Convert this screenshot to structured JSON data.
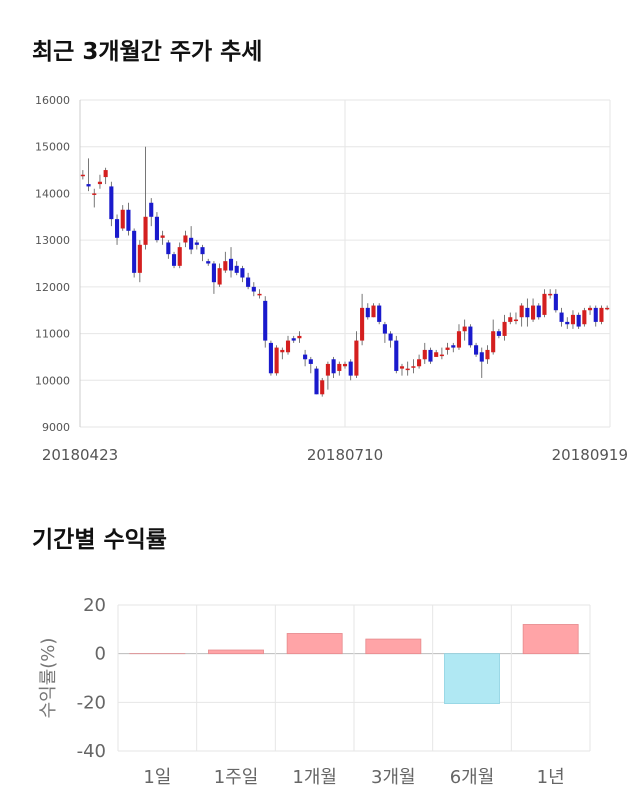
{
  "titles": {
    "price": "최근 3개월간 주가 추세",
    "returns": "기간별 수익률"
  },
  "colors": {
    "up": "#d41f1f",
    "down": "#1a1acc",
    "pos_bar": "#ffa4a7",
    "neg_bar": "#b0e8f3",
    "grid": "#e6e6e6"
  },
  "chart_data": [
    {
      "type": "candlestick",
      "title": "최근 3개월간 주가 추세",
      "ylim": [
        9000,
        16000
      ],
      "yticks": [
        9000,
        10000,
        11000,
        12000,
        13000,
        14000,
        15000,
        16000
      ],
      "x_labels": [
        "20180423",
        "20180710",
        "20180919"
      ],
      "grid": true,
      "candles": [
        [
          14400,
          14400,
          14500,
          14300
        ],
        [
          14200,
          14150,
          14750,
          14050
        ],
        [
          14000,
          14000,
          14100,
          13700
        ],
        [
          14200,
          14250,
          14400,
          14100
        ],
        [
          14350,
          14500,
          14550,
          14200
        ],
        [
          14150,
          13450,
          14250,
          13300
        ],
        [
          13450,
          13050,
          13550,
          12900
        ],
        [
          13250,
          13650,
          13750,
          13200
        ],
        [
          13650,
          13200,
          13800,
          13100
        ],
        [
          13200,
          12300,
          13250,
          12200
        ],
        [
          12300,
          12900,
          13000,
          12100
        ],
        [
          12900,
          13500,
          15000,
          12800
        ],
        [
          13800,
          13500,
          13900,
          13300
        ],
        [
          13500,
          13000,
          13600,
          12950
        ],
        [
          13050,
          13100,
          13200,
          12900
        ],
        [
          12950,
          12700,
          13000,
          12600
        ],
        [
          12700,
          12450,
          12750,
          12400
        ],
        [
          12450,
          12850,
          12950,
          12400
        ],
        [
          12950,
          13100,
          13200,
          12850
        ],
        [
          13050,
          12800,
          13300,
          12700
        ],
        [
          12950,
          12900,
          13000,
          12800
        ],
        [
          12850,
          12700,
          12900,
          12550
        ],
        [
          12550,
          12500,
          12600,
          12450
        ],
        [
          12500,
          12100,
          12550,
          11850
        ],
        [
          12050,
          12400,
          12500,
          12000
        ],
        [
          12350,
          12550,
          12750,
          12300
        ],
        [
          12600,
          12350,
          12850,
          12200
        ],
        [
          12450,
          12300,
          12550,
          12250
        ],
        [
          12400,
          12200,
          12450,
          12100
        ],
        [
          12200,
          12000,
          12300,
          11950
        ],
        [
          12000,
          11900,
          12100,
          11800
        ],
        [
          11850,
          11850,
          11950,
          11750
        ],
        [
          11700,
          10850,
          11800,
          10700
        ],
        [
          10800,
          10150,
          10850,
          10100
        ],
        [
          10150,
          10700,
          10750,
          10100
        ],
        [
          10600,
          10650,
          10700,
          10450
        ],
        [
          10600,
          10850,
          10950,
          10550
        ],
        [
          10900,
          10850,
          10950,
          10800
        ],
        [
          10900,
          10950,
          11050,
          10800
        ],
        [
          10550,
          10450,
          10650,
          10300
        ],
        [
          10450,
          10350,
          10500,
          10150
        ],
        [
          10250,
          9700,
          10300,
          9700
        ],
        [
          9700,
          10000,
          10050,
          9650
        ],
        [
          10100,
          10350,
          10400,
          9800
        ],
        [
          10450,
          10150,
          10500,
          10050
        ],
        [
          10200,
          10350,
          10400,
          10100
        ],
        [
          10300,
          10350,
          10400,
          10250
        ],
        [
          10400,
          10100,
          10450,
          10000
        ],
        [
          10100,
          10850,
          11050,
          10050
        ],
        [
          10850,
          11550,
          11850,
          10750
        ],
        [
          11550,
          11350,
          11650,
          11300
        ],
        [
          11350,
          11600,
          11650,
          11350
        ],
        [
          11600,
          11250,
          11650,
          11200
        ],
        [
          11200,
          11000,
          11250,
          10800
        ],
        [
          11000,
          10850,
          11050,
          10700
        ],
        [
          10850,
          10200,
          10950,
          10150
        ],
        [
          10250,
          10300,
          10350,
          10100
        ],
        [
          10250,
          10250,
          10400,
          10100
        ],
        [
          10300,
          10300,
          10450,
          10150
        ],
        [
          10300,
          10450,
          10550,
          10250
        ],
        [
          10450,
          10650,
          10800,
          10350
        ],
        [
          10650,
          10400,
          10700,
          10350
        ],
        [
          10500,
          10600,
          10650,
          10500
        ],
        [
          10550,
          10550,
          10700,
          10450
        ],
        [
          10650,
          10700,
          10800,
          10550
        ],
        [
          10750,
          10700,
          10800,
          10600
        ],
        [
          10700,
          11050,
          11200,
          10650
        ],
        [
          11050,
          11150,
          11300,
          10850
        ],
        [
          11150,
          10750,
          11200,
          10700
        ],
        [
          10750,
          10550,
          10800,
          10500
        ],
        [
          10600,
          10400,
          10700,
          10050
        ],
        [
          10450,
          10650,
          10750,
          10350
        ],
        [
          10600,
          11050,
          11300,
          10550
        ],
        [
          11050,
          10950,
          11100,
          10900
        ],
        [
          10950,
          11250,
          11400,
          10850
        ],
        [
          11250,
          11350,
          11450,
          11200
        ],
        [
          11300,
          11300,
          11450,
          11200
        ],
        [
          11350,
          11600,
          11650,
          11150
        ],
        [
          11550,
          11350,
          11750,
          11150
        ],
        [
          11300,
          11600,
          11750,
          11250
        ],
        [
          11600,
          11350,
          11650,
          11300
        ],
        [
          11400,
          11850,
          11950,
          11350
        ],
        [
          11850,
          11850,
          11950,
          11750
        ],
        [
          11850,
          11500,
          11950,
          11450
        ],
        [
          11450,
          11250,
          11550,
          11150
        ],
        [
          11250,
          11200,
          11350,
          11100
        ],
        [
          11200,
          11400,
          11500,
          11100
        ],
        [
          11400,
          11150,
          11450,
          11100
        ],
        [
          11200,
          11500,
          11550,
          11150
        ],
        [
          11500,
          11550,
          11600,
          11400
        ],
        [
          11550,
          11250,
          11600,
          11150
        ],
        [
          11250,
          11550,
          11600,
          11200
        ],
        [
          11550,
          11550,
          11600,
          11500
        ]
      ]
    },
    {
      "type": "bar",
      "title": "기간별 수익률",
      "categories": [
        "1일",
        "1주일",
        "1개월",
        "3개월",
        "6개월",
        "1년"
      ],
      "values": [
        0.0,
        1.5,
        8.3,
        6.0,
        -20.5,
        12.0
      ],
      "ylabel": "수익률(%)",
      "ylim": [
        -40,
        20
      ],
      "yticks": [
        -40,
        -20,
        0,
        20
      ],
      "grid": true
    }
  ]
}
